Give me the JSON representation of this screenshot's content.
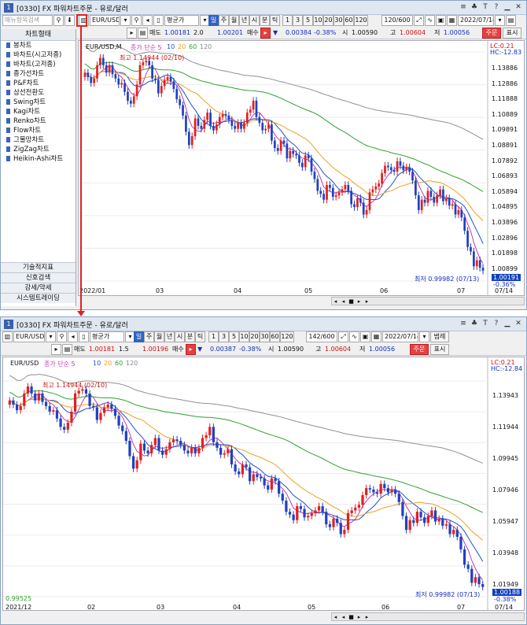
{
  "window_title": "[0330]  FX 파워차트주문 - 유로/달러",
  "title_buttons": [
    "≡",
    "♣",
    "T",
    "?",
    "▁",
    "✕"
  ],
  "search_placeholder": "매뉴항목검색",
  "toolbar": {
    "symbol": "EUR/USD.M",
    "price_type": "평균가",
    "periods": [
      "일",
      "주",
      "월",
      "년",
      "시",
      "분",
      "틱"
    ],
    "intervals": [
      "1",
      "3",
      "5",
      "10",
      "20",
      "30",
      "60",
      "120"
    ],
    "count1": "120/600",
    "count2": "142/600",
    "date": "2022/07/14",
    "legend_btn": "범례",
    "order_btn": "주문",
    "display_btn": "표시"
  },
  "quote": {
    "sell_label": "매도",
    "sell": "1.00181",
    "spread1": "2.0",
    "spread2": "1.5",
    "buy1": "1.00201",
    "buy2": "1.00196",
    "buy_label": "매수",
    "change1": "0.00384",
    "change2": "0.00387",
    "pct": "-0.38%",
    "open_label": "시",
    "open": "1.00590",
    "high_label": "고",
    "high": "1.00604",
    "low_label": "저",
    "low": "1.00056"
  },
  "sidebar": {
    "header": "차트형태",
    "items": [
      "봉차트",
      "바차트(시고저종)",
      "바차트(고저종)",
      "종가선차트",
      "P&F차트",
      "삼선전환도",
      "Swing차트",
      "Kagi차트",
      "Renko차트",
      "Flow차트",
      "그물망차트",
      "ZigZag차트",
      "Heikin-Ashi차트"
    ],
    "bottom": [
      "기술적지표",
      "신호검색",
      "강세/약세",
      "시스템트레이딩"
    ]
  },
  "chart1": {
    "legend_symbol": "EUR/USD,M",
    "legend_ma": [
      "종가 단순 5",
      "10",
      "20",
      "60",
      "120"
    ],
    "high_label": "최고 1.14944 (02/10)",
    "low_label": "최저 0.99982 (07/13)",
    "lc": "LC:0.21",
    "hc": "HC:-12.83",
    "current": "1.00191",
    "pct": "-0.36%",
    "y_labels": [
      "1.13886",
      "1.12886",
      "1.11888",
      "1.10889",
      "1.09891",
      "1.08891",
      "1.07892",
      "1.06893",
      "1.05894",
      "1.04895",
      "1.03896",
      "1.02896",
      "1.01898",
      "1.00899"
    ],
    "x_labels": [
      "2022/01",
      "03",
      "04",
      "05",
      "06",
      "07",
      "07/14"
    ]
  },
  "chart2": {
    "legend_symbol": "EUR/USD",
    "legend_ma": [
      "종가 단순 5",
      "10",
      "20",
      "60",
      "120"
    ],
    "high_label": "최고 1.14944 (02/10)",
    "low_label": "최저 0.99982 (07/13)",
    "lc": "LC:0.21",
    "hc": "HC:-12.84",
    "current": "1.00188",
    "pct": "-0.38%",
    "bottom_value": "0.99525",
    "y_labels": [
      "1.13943",
      "1.11944",
      "1.09945",
      "1.07946",
      "1.05947",
      "1.03948",
      "1.01949"
    ],
    "x_labels": [
      "2021/12",
      "02",
      "03",
      "04",
      "05",
      "06",
      "07",
      "07/14"
    ]
  },
  "colors": {
    "up": "#e02020",
    "down": "#2040c0",
    "ma5": "#c03cb0",
    "ma10": "#2050d0",
    "ma20": "#f0a020",
    "ma60": "#30a030",
    "ma120": "#909090"
  },
  "chart_data": {
    "type": "candlestick",
    "title": "EUR/USD",
    "x_start": "2022/01/03",
    "x_end": "2022/07/14",
    "ylim": [
      0.995,
      1.15
    ],
    "highest": {
      "value": 1.14944,
      "date": "02/10"
    },
    "lowest": {
      "value": 0.99982,
      "date": "07/13"
    },
    "close_trend": [
      1.136,
      1.133,
      1.129,
      1.132,
      1.141,
      1.146,
      1.141,
      1.136,
      1.141,
      1.135,
      1.132,
      1.128,
      1.129,
      1.123,
      1.117,
      1.115,
      1.12,
      1.128,
      1.141,
      1.143,
      1.144,
      1.141,
      1.132,
      1.131,
      1.122,
      1.127,
      1.131,
      1.133,
      1.13,
      1.125,
      1.118,
      1.114,
      1.107,
      1.096,
      1.087,
      1.093,
      1.105,
      1.1,
      1.098,
      1.104,
      1.109,
      1.1,
      1.097,
      1.101,
      1.106,
      1.108,
      1.107,
      1.104,
      1.1,
      1.098,
      1.102,
      1.098,
      1.102,
      1.109,
      1.111,
      1.117,
      1.106,
      1.102,
      1.097,
      1.098,
      1.101,
      1.09,
      1.085,
      1.083,
      1.09,
      1.088,
      1.078,
      1.083,
      1.081,
      1.08,
      1.075,
      1.072,
      1.08,
      1.078,
      1.069,
      1.064,
      1.056,
      1.054,
      1.05,
      1.06,
      1.058,
      1.052,
      1.053,
      1.055,
      1.057,
      1.06,
      1.056,
      1.047,
      1.045,
      1.051,
      1.048,
      1.04,
      1.043,
      1.055,
      1.057,
      1.059,
      1.061,
      1.068,
      1.073,
      1.072,
      1.07,
      1.069,
      1.076,
      1.073,
      1.07,
      1.072,
      1.069,
      1.063,
      1.053,
      1.043,
      1.05,
      1.048,
      1.056,
      1.052,
      1.048,
      1.053,
      1.057,
      1.049,
      1.051,
      1.046,
      1.047,
      1.04,
      1.043,
      1.038,
      1.029,
      1.018,
      1.015,
      1.005,
      1.009,
      1.004,
      1.002
    ]
  }
}
